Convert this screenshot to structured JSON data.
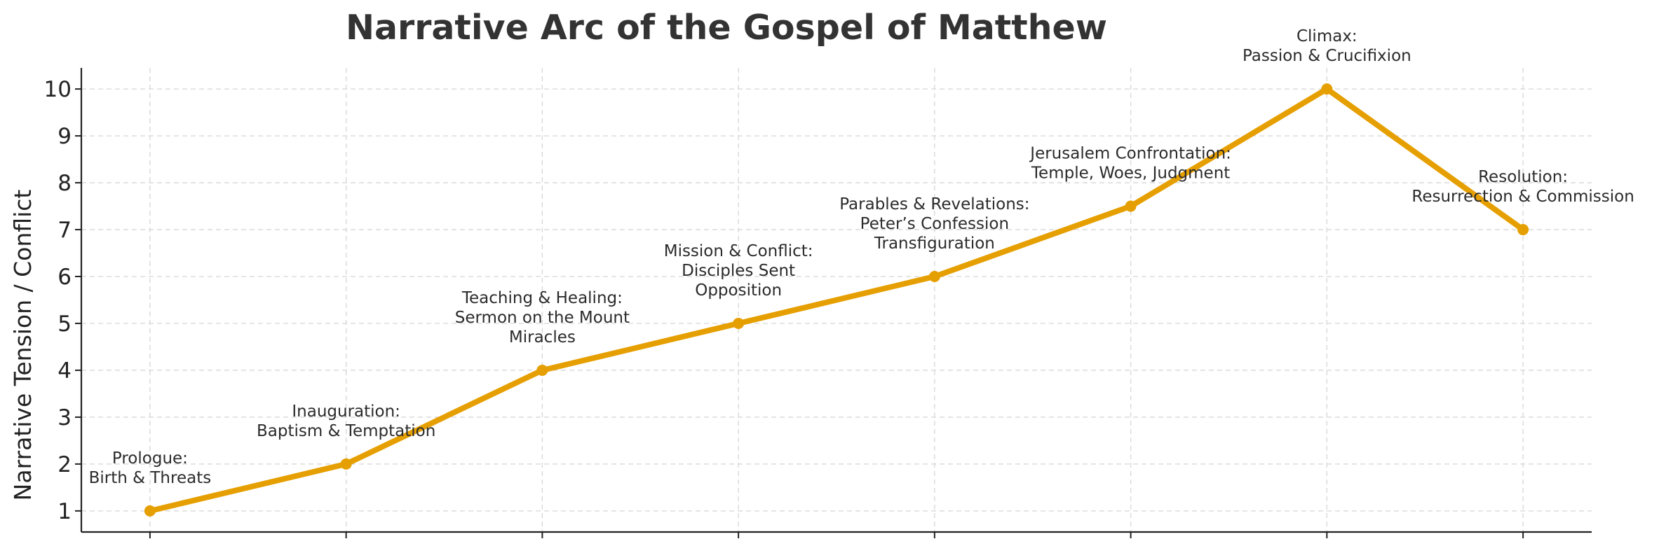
{
  "chart_data": {
    "type": "line",
    "title": "Narrative Arc of the Gospel of Matthew",
    "xlabel": "",
    "ylabel": "Narrative Tension / Conflict",
    "ylim": [
      0.55,
      10.45
    ],
    "yticks": [
      1,
      2,
      3,
      4,
      5,
      6,
      7,
      8,
      9,
      10
    ],
    "grid": true,
    "color": "#E69F00",
    "points": [
      {
        "x": 1,
        "y": 1,
        "label": [
          "Prologue:",
          "Birth & Threats"
        ]
      },
      {
        "x": 2,
        "y": 2,
        "label": [
          "Inauguration:",
          "Baptism & Temptation"
        ]
      },
      {
        "x": 3,
        "y": 4,
        "label": [
          "Teaching & Healing:",
          "Sermon on the Mount",
          "Miracles"
        ]
      },
      {
        "x": 4,
        "y": 5,
        "label": [
          "Mission & Conflict:",
          "Disciples Sent",
          "Opposition"
        ]
      },
      {
        "x": 5,
        "y": 6,
        "label": [
          "Parables & Revelations:",
          "Peter’s Confession",
          "Transfiguration"
        ]
      },
      {
        "x": 6,
        "y": 7.5,
        "label": [
          "Jerusalem Confrontation:",
          "Temple, Woes, Judgment"
        ]
      },
      {
        "x": 7,
        "y": 10,
        "label": [
          "Climax:",
          "Passion & Crucifixion"
        ]
      },
      {
        "x": 8,
        "y": 7,
        "label": [
          "Resolution:",
          "Resurrection & Commission"
        ]
      }
    ]
  }
}
